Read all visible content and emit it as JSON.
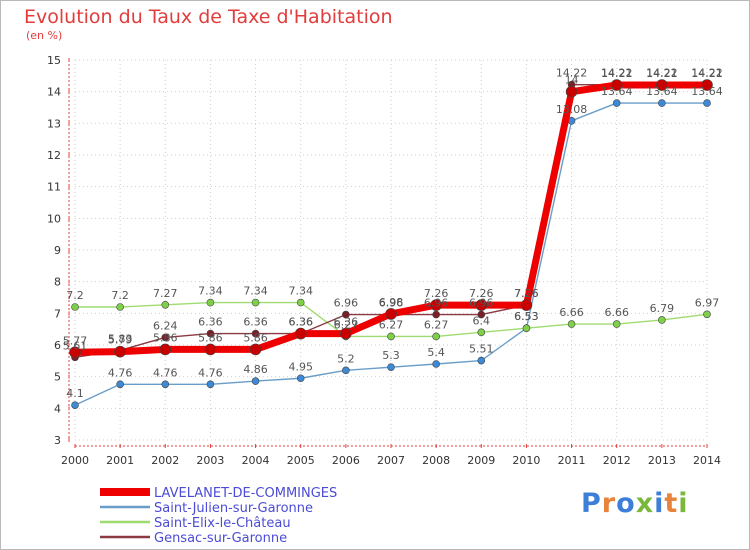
{
  "title": "Evolution du Taux de Taxe d'Habitation",
  "subtitle": "(en %)",
  "logo": {
    "text": "Proxiti",
    "colors": [
      "#3d7ed8",
      "#e7833a",
      "#3d7ed8",
      "#7ab83c",
      "#3d7ed8",
      "#e7833a",
      "#7ab83c"
    ]
  },
  "chart_data": {
    "type": "line",
    "x": [
      2000,
      2001,
      2002,
      2003,
      2004,
      2005,
      2006,
      2007,
      2008,
      2009,
      2010,
      2011,
      2012,
      2013,
      2014
    ],
    "ylim": [
      3,
      15
    ],
    "yticks": [
      3,
      4,
      5,
      6,
      7,
      8,
      9,
      10,
      11,
      12,
      13,
      14,
      15
    ],
    "grid": true,
    "legend_position": "bottom",
    "series": [
      {
        "name": "Saint-Julien-sur-Garonne",
        "color": "#6a9ec9",
        "marker": "#3d89d5",
        "values": [
          4.1,
          4.76,
          4.76,
          4.76,
          4.86,
          4.95,
          5.2,
          5.3,
          5.4,
          5.51,
          6.53,
          13.08,
          13.64,
          13.64,
          13.64
        ],
        "labels": [
          "4.1",
          "4.76",
          "4.76",
          "4.76",
          "4.86",
          "4.95",
          "5.2",
          "5.3",
          "5.4",
          "5.51",
          "6.53",
          "13.08",
          "13.64",
          "13.64",
          "13.64"
        ]
      },
      {
        "name": "Saint-Elix-le-Château",
        "color": "#9fdc6f",
        "marker": "#7ed048",
        "values": [
          7.2,
          7.2,
          7.27,
          7.34,
          7.34,
          7.34,
          6.27,
          6.27,
          6.27,
          6.4,
          6.53,
          6.66,
          6.66,
          6.79,
          6.97
        ],
        "labels": [
          "7.2",
          "7.2",
          "7.27",
          "7.34",
          "7.34",
          "7.34",
          "6.27",
          "6.27",
          "6.27",
          "6.4",
          "6.53",
          "6.66",
          "6.66",
          "6.79",
          "6.97"
        ]
      },
      {
        "name": "Gensac-sur-Garonne",
        "color": "#8b3a42",
        "marker": "#7a1e28",
        "values": [
          5.61,
          5.83,
          6.24,
          6.36,
          6.36,
          6.36,
          6.96,
          6.96,
          6.96,
          6.96,
          7.26,
          14.22,
          14.22,
          14.22,
          14.22
        ],
        "labels": [
          "5.61",
          "5.83",
          "6.24",
          "6.36",
          "6.36",
          "6.36",
          "6.96",
          "6.96",
          "6.96",
          "6.96",
          "7.26",
          "14.22",
          "14.22",
          "14.22",
          "14.22"
        ]
      },
      {
        "name": "LAVELANET-DE-COMMINGES",
        "color": "#ee0000",
        "marker": "#c80000",
        "values": [
          5.77,
          5.79,
          5.86,
          5.86,
          5.86,
          6.36,
          6.36,
          6.98,
          7.26,
          7.26,
          7.26,
          14,
          14.21,
          14.21,
          14.21
        ],
        "labels": [
          "5.77",
          "5.79",
          "5.86",
          "5.86",
          "5.86",
          "6.36",
          "6.36",
          "6.98",
          "7.26",
          "7.26",
          "7.26",
          "14",
          "14.21",
          "14.21",
          "14.21"
        ]
      }
    ],
    "legend_order": [
      "LAVELANET-DE-COMMINGES",
      "Saint-Julien-sur-Garonne",
      "Saint-Elix-le-Château",
      "Gensac-sur-Garonne"
    ]
  }
}
